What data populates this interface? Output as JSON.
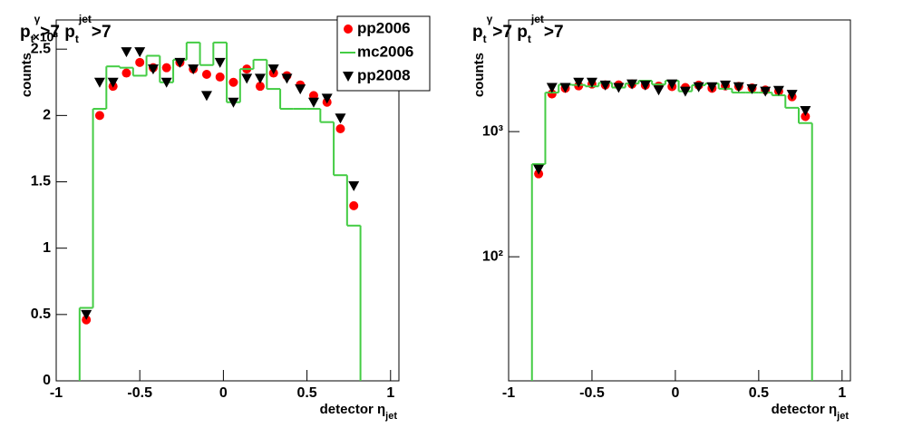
{
  "chart_data": [
    {
      "type": "histogram",
      "title_parts": [
        "p",
        "t",
        "γ",
        ">7 p",
        "t",
        "jet",
        ">7"
      ],
      "y_label": "counts",
      "x_label_parts": [
        "detector η",
        "jet"
      ],
      "y_multiplier": "×10³",
      "bins": [
        -0.86,
        -0.78,
        -0.7,
        -0.62,
        -0.54,
        -0.46,
        -0.38,
        -0.3,
        -0.22,
        -0.14,
        -0.06,
        0.02,
        0.1,
        0.18,
        0.26,
        0.34,
        0.42,
        0.5,
        0.58,
        0.66,
        0.74,
        0.82
      ],
      "xlim": [
        -1,
        1.05
      ],
      "xticks": [
        -1,
        -0.5,
        0,
        0.5,
        1
      ],
      "ylim": [
        0,
        2.72
      ],
      "yticks": [
        0,
        0.5,
        1,
        1.5,
        2,
        2.5
      ],
      "log": false,
      "legend": "top-right",
      "series": [
        {
          "name": "pp2006",
          "color": "#ff0000",
          "marker": "circle",
          "values": [
            0.46,
            2.0,
            2.22,
            2.32,
            2.4,
            2.36,
            2.36,
            2.4,
            2.35,
            2.31,
            2.29,
            2.25,
            2.35,
            2.22,
            2.32,
            2.3,
            2.23,
            2.15,
            2.1,
            1.9,
            1.32
          ]
        },
        {
          "name": "mc2006",
          "color": "#44cc44",
          "marker": "step",
          "values": [
            0.55,
            2.05,
            2.37,
            2.36,
            2.3,
            2.45,
            2.25,
            2.42,
            2.55,
            2.38,
            2.55,
            2.1,
            2.35,
            2.42,
            2.2,
            2.05,
            2.05,
            2.05,
            1.95,
            1.55,
            1.17
          ]
        },
        {
          "name": "pp2008",
          "color": "#000000",
          "marker": "triangle-down",
          "values": [
            0.5,
            2.25,
            2.25,
            2.48,
            2.48,
            2.35,
            2.25,
            2.4,
            2.35,
            2.15,
            2.4,
            2.1,
            2.28,
            2.28,
            2.35,
            2.28,
            2.2,
            2.1,
            2.13,
            1.98,
            1.47
          ]
        }
      ]
    },
    {
      "type": "histogram",
      "title_parts": [
        "p",
        "t",
        "γ",
        ">7 p",
        "t",
        "jet",
        ">7"
      ],
      "y_label": "counts",
      "x_label_parts": [
        "detector η",
        "jet"
      ],
      "bins": [
        -0.86,
        -0.78,
        -0.7,
        -0.62,
        -0.54,
        -0.46,
        -0.38,
        -0.3,
        -0.22,
        -0.14,
        -0.06,
        0.02,
        0.1,
        0.18,
        0.26,
        0.34,
        0.42,
        0.5,
        0.58,
        0.66,
        0.74,
        0.82
      ],
      "xlim": [
        -1,
        1.05
      ],
      "xticks": [
        -1,
        -0.5,
        0,
        0.5,
        1
      ],
      "ylim": [
        10.2,
        7800
      ],
      "yticks": [
        {
          "value": 100,
          "label": "10²"
        },
        {
          "value": 1000,
          "label": "10³"
        }
      ],
      "log": true,
      "series": [
        {
          "color": "#ff0000",
          "marker": "circle",
          "values": [
            460,
            2000,
            2220,
            2320,
            2400,
            2360,
            2360,
            2400,
            2350,
            2310,
            2290,
            2250,
            2350,
            2220,
            2320,
            2300,
            2230,
            2150,
            2100,
            1900,
            1320
          ]
        },
        {
          "color": "#44cc44",
          "marker": "step",
          "values": [
            550,
            2050,
            2370,
            2360,
            2300,
            2450,
            2250,
            2420,
            2550,
            2380,
            2550,
            2100,
            2350,
            2420,
            2200,
            2050,
            2050,
            2050,
            1950,
            1550,
            1170
          ]
        },
        {
          "color": "#000000",
          "marker": "triangle-down",
          "values": [
            500,
            2250,
            2250,
            2480,
            2480,
            2350,
            2250,
            2400,
            2350,
            2150,
            2400,
            2100,
            2280,
            2280,
            2350,
            2280,
            2200,
            2100,
            2130,
            1980,
            1470
          ]
        }
      ]
    }
  ]
}
